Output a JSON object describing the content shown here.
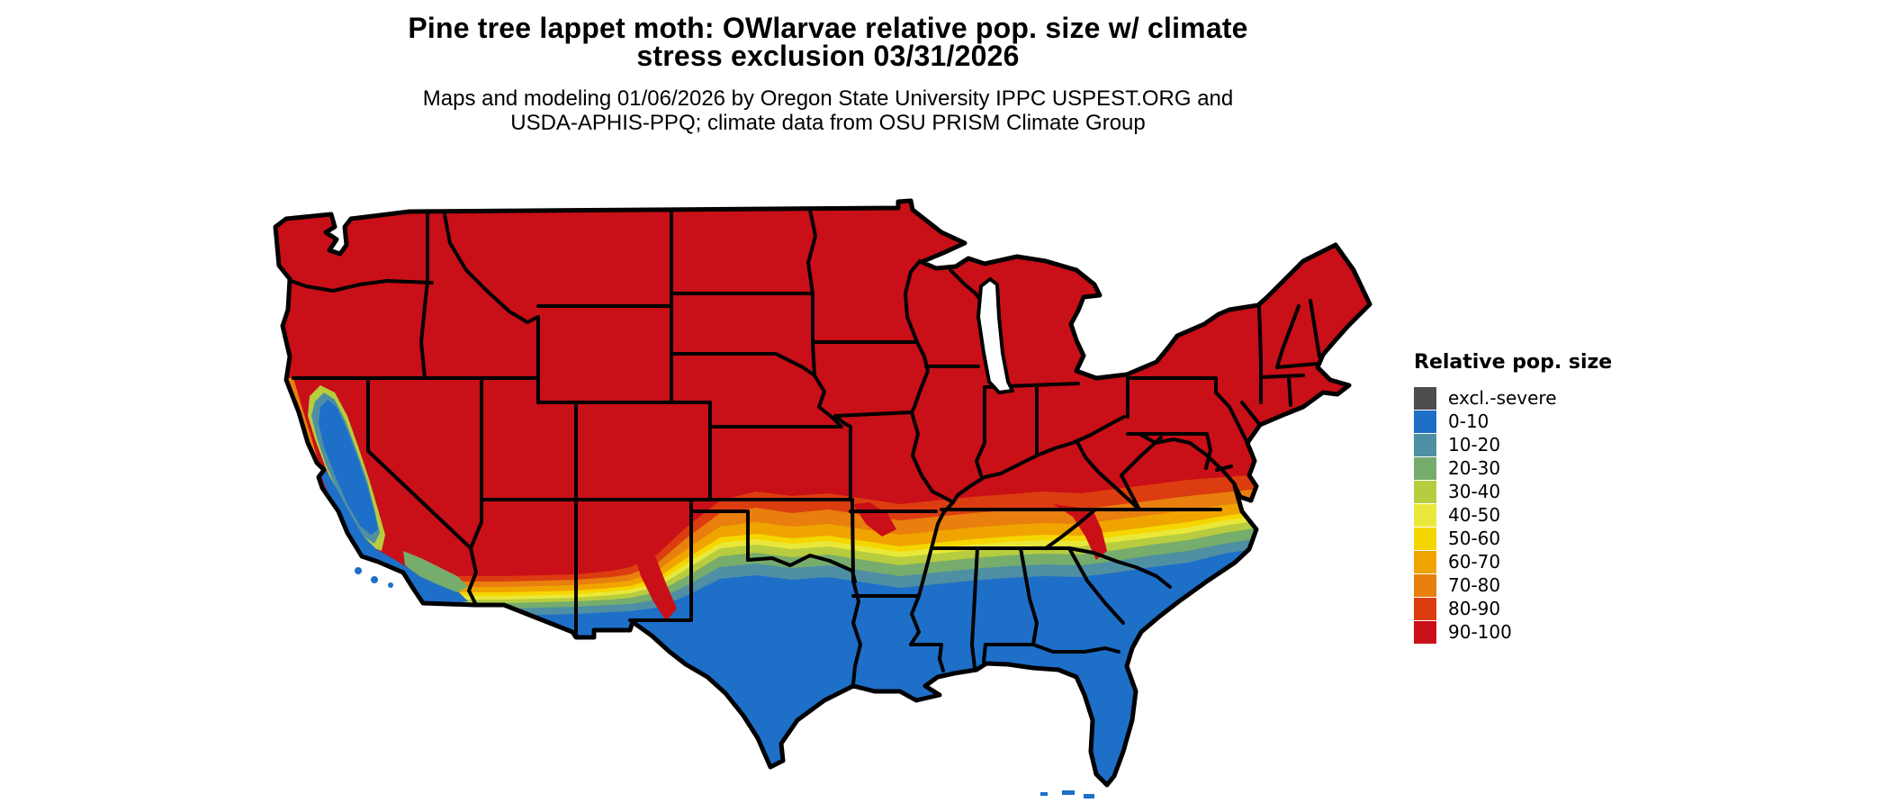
{
  "header": {
    "title_line1": "Pine tree lappet moth: OWlarvae relative pop. size w/ climate",
    "title_line2": "stress exclusion 03/31/2026",
    "subtitle_line1": "Maps and modeling 01/06/2026 by Oregon State University IPPC USPEST.ORG and",
    "subtitle_line2": "USDA-APHIS-PPQ; climate data from OSU PRISM Climate Group"
  },
  "legend": {
    "title": "Relative pop. size",
    "items": [
      {
        "key": "excl",
        "label": "excl.-severe",
        "color": "#4d4d4d"
      },
      {
        "key": "b0_10",
        "label": "0-10",
        "color": "#1e6fc8"
      },
      {
        "key": "b10_20",
        "label": "10-20",
        "color": "#4e8fa3"
      },
      {
        "key": "b20_30",
        "label": "20-30",
        "color": "#76ac6c"
      },
      {
        "key": "b30_40",
        "label": "30-40",
        "color": "#b7cc3e"
      },
      {
        "key": "b40_50",
        "label": "40-50",
        "color": "#e9e83a"
      },
      {
        "key": "b50_60",
        "label": "50-60",
        "color": "#f6d600"
      },
      {
        "key": "b60_70",
        "label": "60-70",
        "color": "#f0a400"
      },
      {
        "key": "b70_80",
        "label": "70-80",
        "color": "#e87f0e"
      },
      {
        "key": "b80_90",
        "label": "80-90",
        "color": "#dc3d10"
      },
      {
        "key": "b90_100",
        "label": "90-100",
        "color": "#c90f17"
      }
    ]
  },
  "map": {
    "region": "Contiguous United States",
    "palette": {
      "excl": "#4d4d4d",
      "b0_10": "#1e6fc8",
      "b10_20": "#4e8fa3",
      "b20_30": "#76ac6c",
      "b30_40": "#b7cc3e",
      "b40_50": "#e9e83a",
      "b50_60": "#f6d600",
      "b60_70": "#f0a400",
      "b70_80": "#e87f0e",
      "b80_90": "#dc3d10",
      "b90_100": "#c90f17",
      "water": "#ffffff",
      "border": "#000000"
    }
  }
}
